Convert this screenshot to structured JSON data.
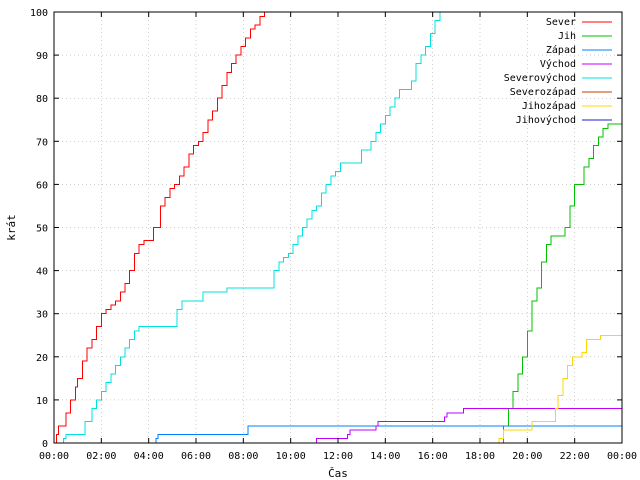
{
  "chart_data": {
    "type": "line",
    "title": "",
    "xlabel": "Čas",
    "ylabel": "krát",
    "xlim": [
      0,
      24
    ],
    "ylim": [
      0,
      100
    ],
    "grid": true,
    "legend_position": "top-right",
    "x_unit": "hours",
    "x_tick_values": [
      0,
      2,
      4,
      6,
      8,
      10,
      12,
      14,
      16,
      18,
      20,
      22,
      24
    ],
    "x_tick_labels": [
      "00:00",
      "02:00",
      "04:00",
      "06:00",
      "08:00",
      "10:00",
      "12:00",
      "14:00",
      "16:00",
      "18:00",
      "20:00",
      "22:00",
      "00:00"
    ],
    "y_tick_values": [
      0,
      10,
      20,
      30,
      40,
      50,
      60,
      70,
      80,
      90,
      100
    ],
    "y_tick_labels": [
      "0",
      "10",
      "20",
      "30",
      "40",
      "50",
      "60",
      "70",
      "80",
      "90",
      "100"
    ],
    "series": [
      {
        "name": "Sever",
        "color": "#ff0000",
        "step": true,
        "x": [
          0,
          0.1,
          0.2,
          0.3,
          0.5,
          0.7,
          0.9,
          1.0,
          1.2,
          1.4,
          1.6,
          1.8,
          2.0,
          2.2,
          2.4,
          2.6,
          2.8,
          3.0,
          3.2,
          3.4,
          3.6,
          3.8,
          4.0,
          4.2,
          4.5,
          4.7,
          4.9,
          5.1,
          5.3,
          5.5,
          5.7,
          5.9,
          6.1,
          6.3,
          6.5,
          6.7,
          6.9,
          7.1,
          7.3,
          7.5,
          7.7,
          7.9,
          8.1,
          8.3,
          8.5,
          8.7,
          8.9
        ],
        "y": [
          0,
          2,
          4,
          4,
          7,
          10,
          13,
          15,
          19,
          22,
          24,
          27,
          30,
          31,
          32,
          33,
          35,
          37,
          40,
          44,
          46,
          47,
          47,
          50,
          55,
          57,
          59,
          60,
          62,
          64,
          67,
          69,
          70,
          72,
          75,
          77,
          80,
          83,
          86,
          88,
          90,
          92,
          94,
          96,
          97,
          99,
          100
        ]
      },
      {
        "name": "Jih",
        "color": "#00c000",
        "step": true,
        "x": [
          0,
          18.8,
          19.0,
          19.2,
          19.4,
          19.6,
          19.8,
          20.0,
          20.2,
          20.4,
          20.6,
          20.8,
          21.0,
          21.4,
          21.6,
          21.8,
          22.0,
          22.2,
          22.4,
          22.6,
          22.8,
          23.0,
          23.2,
          23.4,
          23.6,
          24.0
        ],
        "y": [
          0,
          0,
          4,
          8,
          12,
          16,
          20,
          26,
          33,
          36,
          42,
          46,
          48,
          48,
          50,
          55,
          60,
          60,
          64,
          66,
          69,
          71,
          73,
          74,
          74,
          74
        ]
      },
      {
        "name": "Západ",
        "color": "#0080ff",
        "step": true,
        "x": [
          0,
          4.3,
          4.4,
          8.1,
          8.2,
          24.0
        ],
        "y": [
          0,
          1,
          2,
          2,
          4,
          4
        ]
      },
      {
        "name": "Východ",
        "color": "#c000ff",
        "step": true,
        "x": [
          0,
          11.0,
          11.1,
          12.4,
          12.5,
          13.6,
          13.7,
          16.5,
          16.6,
          17.3,
          17.4,
          24.0
        ],
        "y": [
          0,
          0,
          1,
          2,
          3,
          4,
          5,
          6,
          7,
          8,
          8,
          8
        ]
      },
      {
        "name": "Severovýchod",
        "color": "#00e0e0",
        "step": true,
        "x": [
          0,
          0.4,
          0.5,
          1.2,
          1.3,
          1.6,
          1.8,
          2.0,
          2.2,
          2.4,
          2.6,
          2.8,
          3.0,
          3.2,
          3.4,
          3.6,
          3.8,
          4.0,
          4.2,
          5.2,
          5.4,
          5.6,
          6.3,
          6.5,
          7.3,
          7.5,
          9.3,
          9.5,
          9.7,
          9.9,
          10.1,
          10.3,
          10.5,
          10.7,
          10.9,
          11.1,
          11.3,
          11.5,
          11.7,
          11.9,
          12.1,
          12.3,
          12.6,
          13.0,
          13.4,
          13.6,
          13.8,
          14.0,
          14.2,
          14.4,
          14.6,
          14.9,
          15.1,
          15.3,
          15.5,
          15.7,
          15.9,
          16.1,
          16.3
        ],
        "y": [
          0,
          1,
          2,
          2,
          5,
          8,
          10,
          12,
          14,
          16,
          18,
          20,
          22,
          24,
          26,
          27,
          27,
          27,
          27,
          31,
          33,
          33,
          35,
          35,
          36,
          36,
          40,
          42,
          43,
          44,
          46,
          48,
          50,
          52,
          54,
          55,
          58,
          60,
          62,
          63,
          65,
          65,
          65,
          68,
          70,
          72,
          74,
          76,
          78,
          80,
          82,
          82,
          84,
          88,
          90,
          92,
          95,
          98,
          100
        ]
      },
      {
        "name": "Severozápad",
        "color": "#c04000",
        "step": true,
        "x": [
          0,
          24.0
        ],
        "y": [
          0,
          0
        ]
      },
      {
        "name": "Jihozápad",
        "color": "#ffd700",
        "step": true,
        "x": [
          0,
          18.7,
          18.8,
          19.0,
          20.0,
          20.2,
          21.0,
          21.2,
          21.3,
          21.5,
          21.7,
          21.9,
          22.3,
          22.5,
          23.1,
          23.3,
          24.0
        ],
        "y": [
          0,
          0,
          1,
          3,
          3,
          5,
          5,
          8,
          11,
          15,
          18,
          20,
          21,
          24,
          25,
          25,
          25
        ]
      },
      {
        "name": "Jihovýchod",
        "color": "#1c1ccc",
        "step": true,
        "x": [
          0,
          24.0
        ],
        "y": [
          0,
          0
        ]
      }
    ]
  }
}
